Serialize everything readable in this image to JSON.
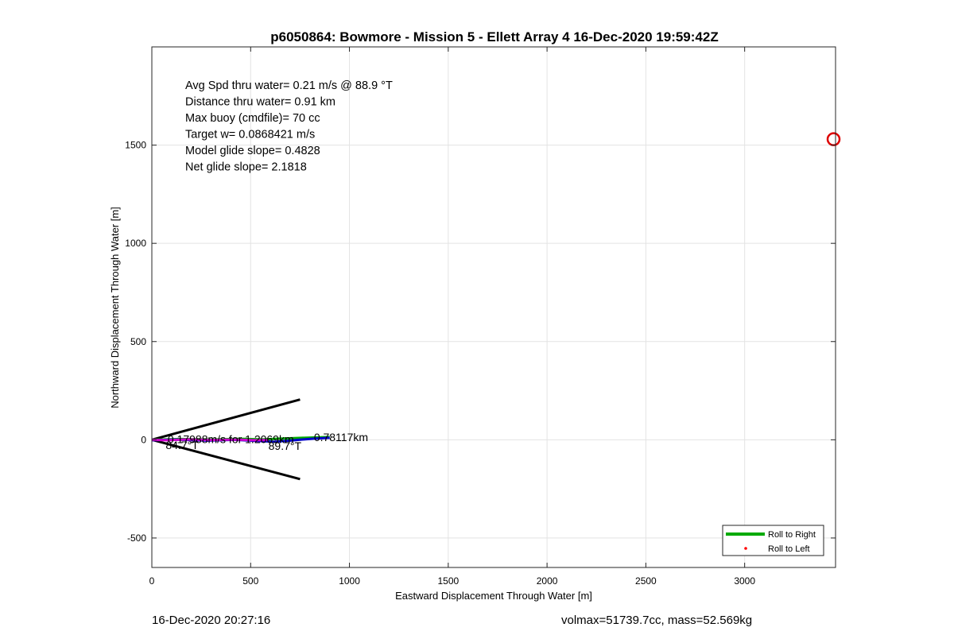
{
  "chart_data": {
    "type": "line",
    "title": "p6050864: Bowmore - Mission 5 - Ellett Array 4 16-Dec-2020 19:59:42Z",
    "xlabel": "Eastward Displacement Through Water [m]",
    "ylabel": "Northward Displacement Through Water [m]",
    "xlim": [
      0,
      3460
    ],
    "ylim": [
      -650,
      2000
    ],
    "xticks": [
      0,
      500,
      1000,
      1500,
      2000,
      2500,
      3000
    ],
    "yticks": [
      -500,
      0,
      500,
      1000,
      1500
    ],
    "grid": true,
    "legend_position": "bottom-right",
    "legend": [
      {
        "label": "Roll to Right",
        "color": "#00aa00",
        "style": "line"
      },
      {
        "label": "Roll to Left",
        "color": "#ff0000",
        "style": "dot"
      }
    ],
    "info_text": [
      "Avg Spd thru water=  0.21 m/s @  88.9 °T",
      "Distance thru water=  0.91 km",
      "Max buoy (cmdfile)= 70 cc",
      "Target w= 0.0868421 m/s",
      "Model glide slope= 0.4828",
      "Net glide slope= 2.1818"
    ],
    "series": [
      {
        "color": "#00aa00",
        "x": [
          0,
          150,
          300,
          450,
          560,
          650,
          760,
          900
        ],
        "y": [
          0,
          4,
          1,
          5,
          2,
          6,
          10,
          14
        ]
      },
      {
        "color": "#0000cc",
        "x": [
          0,
          120,
          280,
          420,
          540,
          620,
          700,
          820,
          900
        ],
        "y": [
          -2,
          1,
          -4,
          0,
          -6,
          -10,
          -4,
          6,
          10
        ]
      },
      {
        "color": "#cc00cc",
        "x": [
          0,
          80,
          180,
          300,
          420,
          520,
          590
        ],
        "y": [
          0,
          -2,
          2,
          -1,
          1,
          -2,
          -1
        ]
      }
    ],
    "cone_lines": [
      {
        "x": [
          0,
          750
        ],
        "y": [
          0,
          205
        ]
      },
      {
        "x": [
          0,
          750
        ],
        "y": [
          0,
          -200
        ]
      }
    ],
    "marker": {
      "x": 3450,
      "y": 1530,
      "color": "#dd0000",
      "shape": "circle"
    },
    "annotations": [
      {
        "text": "0.17988m/s for 1.2069km",
        "x": 80,
        "y": 0
      },
      {
        "text": "0.78117km",
        "x": 820,
        "y": 10
      },
      {
        "text": "84.7°T",
        "x": 70,
        "y": -30
      },
      {
        "text": "89.7°T",
        "x": 590,
        "y": -35
      }
    ]
  },
  "footer": {
    "left": "16-Dec-2020 20:27:16",
    "right": "volmax=51739.7cc, mass=52.569kg"
  }
}
